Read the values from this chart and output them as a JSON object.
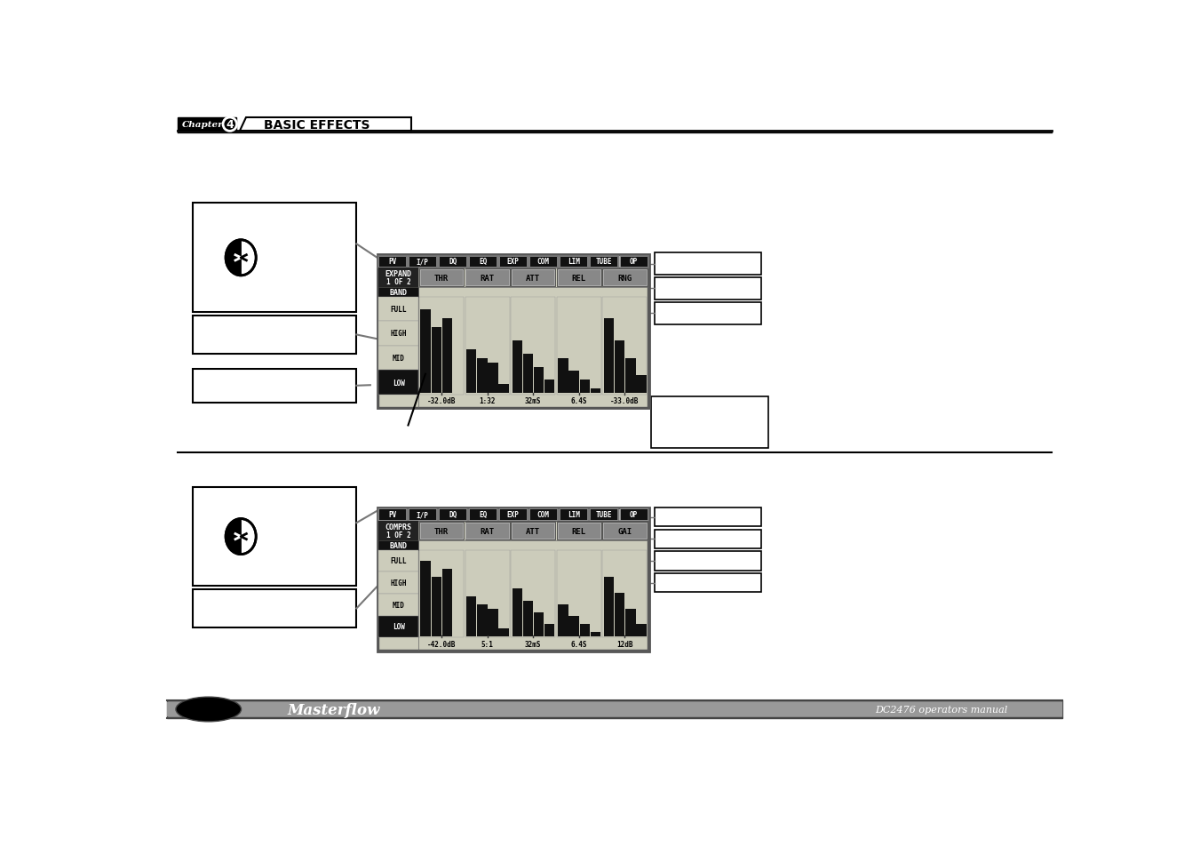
{
  "bg_color": "#ffffff",
  "header_text": "BASIC EFFECTS",
  "footer_left": "Masterflow",
  "footer_right": "DC2476 operators manual",
  "menu_tabs": [
    "PV",
    "I/P",
    "DQ",
    "EQ",
    "EXP",
    "COM",
    "LIM",
    "TUBE",
    "OP"
  ],
  "exp_active_tab": "EXP",
  "com_active_tab": "COM",
  "expander_cols": [
    "THR",
    "RAT",
    "ATT",
    "REL",
    "RNG"
  ],
  "expander_bottom_vals": [
    "-32.0dB",
    "1:32",
    "32mS",
    "6.4S",
    "-33.0dB"
  ],
  "compressor_cols": [
    "THR",
    "RAT",
    "ATT",
    "REL",
    "GAI"
  ],
  "compressor_bottom_vals": [
    "-42.0dB",
    "5:1",
    "32mS",
    "6.4S",
    "12dB"
  ],
  "band_labels": [
    "FULL",
    "HIGH",
    "MID",
    "LOW"
  ],
  "lcd_bg": "#aaaaaa",
  "lcd_inner_bg": "#888888",
  "lcd_dark": "#222222",
  "lcd_text_col": "#ffffff"
}
